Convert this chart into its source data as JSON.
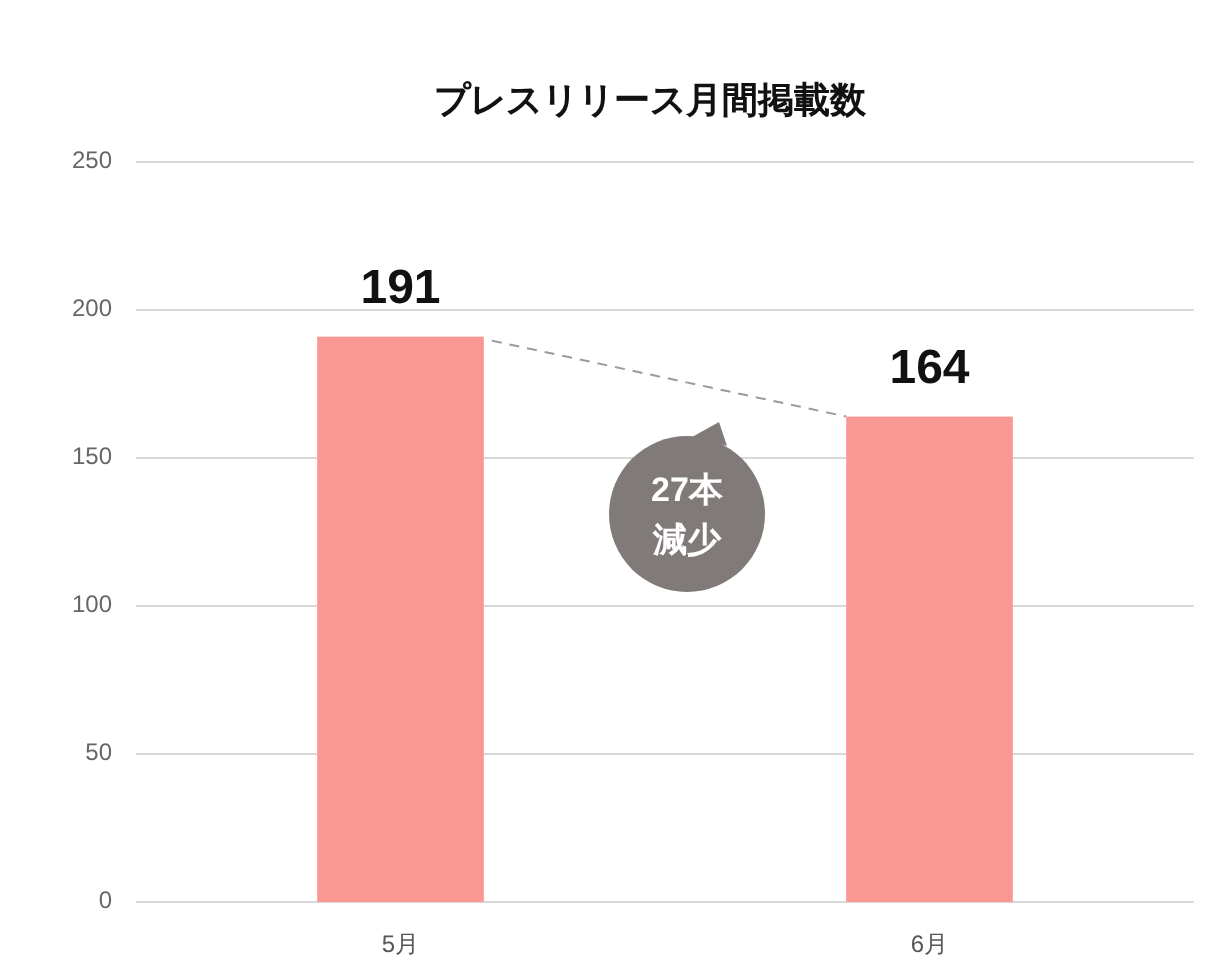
{
  "chart_data": {
    "type": "bar",
    "title": "プレスリリース月間掲載数",
    "categories": [
      "5月",
      "6月"
    ],
    "values": [
      191,
      164
    ],
    "color": "#f99792",
    "ylim": [
      0,
      250
    ],
    "yticks": [
      0,
      50,
      100,
      150,
      200,
      250
    ],
    "grid": "y",
    "data_labels": true,
    "annotations": [
      "27本減少"
    ]
  }
}
